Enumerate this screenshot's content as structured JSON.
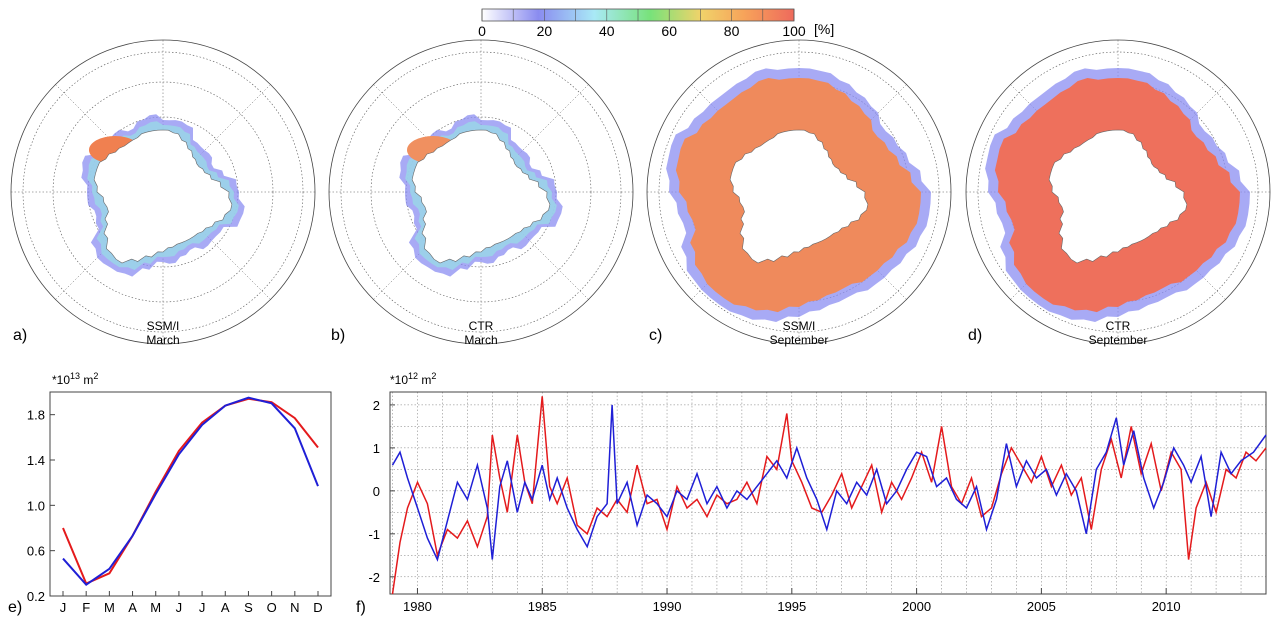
{
  "colorbar": {
    "ticks": [
      "0",
      "20",
      "40",
      "60",
      "80",
      "100"
    ],
    "unit": "[%]",
    "colors": [
      "#ffffff",
      "#8a8cf0",
      "#a9e9f6",
      "#78e27a",
      "#f0d36a",
      "#f7a35a",
      "#ee6a5c"
    ]
  },
  "maps": [
    {
      "letter": "a)",
      "source": "SSM/I",
      "month": "March",
      "colors": {
        "land": "#ffffff",
        "pack": "#f08050",
        "edge": "#8b8ef2"
      }
    },
    {
      "letter": "b)",
      "source": "CTR",
      "month": "March",
      "colors": {
        "land": "#ffffff",
        "pack": "#f09060",
        "edge": "#8b8ef2"
      }
    },
    {
      "letter": "c)",
      "source": "SSM/I",
      "month": "September",
      "colors": {
        "land": "#ffffff",
        "pack": "#ef8a5c",
        "edge": "#8b8ef2"
      }
    },
    {
      "letter": "d)",
      "source": "CTR",
      "month": "September",
      "colors": {
        "land": "#ffffff",
        "pack": "#ee705c",
        "edge": "#8b8ef2"
      }
    }
  ],
  "chart_data": [
    {
      "type": "line",
      "panel": "e)",
      "unit_label": "*10",
      "unit_exp": "13",
      "unit_suffix": " m",
      "unit_sq": "2",
      "categories": [
        "J",
        "F",
        "M",
        "A",
        "M",
        "J",
        "J",
        "A",
        "S",
        "O",
        "N",
        "D"
      ],
      "yticks": [
        "0.2",
        "0.6",
        "1.0",
        "1.4",
        "1.8"
      ],
      "ylim": [
        0.2,
        2.0
      ],
      "series": [
        {
          "color": "#e41a1c",
          "values": [
            0.8,
            0.31,
            0.4,
            0.73,
            1.12,
            1.48,
            1.73,
            1.88,
            1.94,
            1.91,
            1.77,
            1.51
          ]
        },
        {
          "color": "#1f1fd6",
          "values": [
            0.53,
            0.3,
            0.44,
            0.73,
            1.1,
            1.45,
            1.71,
            1.88,
            1.95,
            1.9,
            1.68,
            1.17
          ]
        }
      ]
    },
    {
      "type": "line",
      "panel": "f)",
      "unit_label": "*10",
      "unit_exp": "12",
      "unit_suffix": " m",
      "unit_sq": "2",
      "xticks": [
        "1980",
        "1985",
        "1990",
        "1995",
        "2000",
        "2005",
        "2010"
      ],
      "yticks": [
        "-2",
        "-1",
        "0",
        "1",
        "2"
      ],
      "xlim": [
        1978.9,
        2014.0
      ],
      "ylim": [
        -2.4,
        2.3
      ],
      "grid": true,
      "series": [
        {
          "color": "#e41a1c",
          "points": [
            [
              1979.0,
              -2.4
            ],
            [
              1979.3,
              -1.2
            ],
            [
              1979.6,
              -0.4
            ],
            [
              1980.0,
              0.2
            ],
            [
              1980.4,
              -0.3
            ],
            [
              1980.8,
              -1.5
            ],
            [
              1981.2,
              -0.9
            ],
            [
              1981.6,
              -1.1
            ],
            [
              1982.0,
              -0.7
            ],
            [
              1982.4,
              -1.3
            ],
            [
              1982.8,
              -0.6
            ],
            [
              1983.0,
              1.3
            ],
            [
              1983.3,
              0.3
            ],
            [
              1983.6,
              -0.5
            ],
            [
              1984.0,
              1.3
            ],
            [
              1984.3,
              0.2
            ],
            [
              1984.6,
              -0.3
            ],
            [
              1985.0,
              2.2
            ],
            [
              1985.3,
              0.1
            ],
            [
              1985.6,
              -0.3
            ],
            [
              1986.0,
              0.3
            ],
            [
              1986.4,
              -0.8
            ],
            [
              1986.8,
              -1.0
            ],
            [
              1987.2,
              -0.4
            ],
            [
              1987.6,
              -0.6
            ],
            [
              1988.0,
              -0.2
            ],
            [
              1988.4,
              -0.5
            ],
            [
              1988.8,
              0.6
            ],
            [
              1989.2,
              -0.3
            ],
            [
              1989.6,
              -0.2
            ],
            [
              1990.0,
              -0.9
            ],
            [
              1990.4,
              0.1
            ],
            [
              1990.8,
              -0.4
            ],
            [
              1991.2,
              -0.2
            ],
            [
              1991.6,
              -0.6
            ],
            [
              1992.0,
              -0.1
            ],
            [
              1992.4,
              -0.3
            ],
            [
              1992.8,
              -0.2
            ],
            [
              1993.2,
              0.2
            ],
            [
              1993.6,
              -0.3
            ],
            [
              1994.0,
              0.8
            ],
            [
              1994.4,
              0.5
            ],
            [
              1994.8,
              1.8
            ],
            [
              1995.0,
              0.7
            ],
            [
              1995.4,
              0.2
            ],
            [
              1995.8,
              -0.4
            ],
            [
              1996.2,
              -0.5
            ],
            [
              1996.6,
              -0.1
            ],
            [
              1997.0,
              0.4
            ],
            [
              1997.4,
              -0.4
            ],
            [
              1997.8,
              0.1
            ],
            [
              1998.2,
              0.6
            ],
            [
              1998.6,
              -0.5
            ],
            [
              1999.0,
              0.2
            ],
            [
              1999.4,
              -0.2
            ],
            [
              1999.8,
              0.3
            ],
            [
              2000.2,
              0.9
            ],
            [
              2000.6,
              0.2
            ],
            [
              2001.0,
              1.5
            ],
            [
              2001.4,
              0.1
            ],
            [
              2001.8,
              -0.3
            ],
            [
              2002.2,
              0.3
            ],
            [
              2002.6,
              -0.6
            ],
            [
              2003.0,
              -0.4
            ],
            [
              2003.4,
              0.4
            ],
            [
              2003.8,
              1.0
            ],
            [
              2004.2,
              0.6
            ],
            [
              2004.6,
              0.2
            ],
            [
              2005.0,
              0.8
            ],
            [
              2005.4,
              0.1
            ],
            [
              2005.8,
              0.6
            ],
            [
              2006.2,
              -0.1
            ],
            [
              2006.6,
              0.3
            ],
            [
              2007.0,
              -0.9
            ],
            [
              2007.4,
              0.5
            ],
            [
              2007.8,
              1.2
            ],
            [
              2008.2,
              0.3
            ],
            [
              2008.6,
              1.5
            ],
            [
              2009.0,
              0.4
            ],
            [
              2009.4,
              1.1
            ],
            [
              2009.8,
              0.0
            ],
            [
              2010.2,
              0.9
            ],
            [
              2010.6,
              0.5
            ],
            [
              2010.9,
              -1.6
            ],
            [
              2011.2,
              -0.4
            ],
            [
              2011.6,
              0.2
            ],
            [
              2012.0,
              -0.5
            ],
            [
              2012.4,
              0.5
            ],
            [
              2012.8,
              0.3
            ],
            [
              2013.2,
              0.9
            ],
            [
              2013.6,
              0.7
            ],
            [
              2014.0,
              1.0
            ]
          ]
        },
        {
          "color": "#1f1fd6",
          "points": [
            [
              1979.0,
              0.6
            ],
            [
              1979.3,
              0.9
            ],
            [
              1979.6,
              0.3
            ],
            [
              1980.0,
              -0.4
            ],
            [
              1980.4,
              -1.1
            ],
            [
              1980.8,
              -1.6
            ],
            [
              1981.2,
              -0.7
            ],
            [
              1981.6,
              0.2
            ],
            [
              1982.0,
              -0.2
            ],
            [
              1982.4,
              0.6
            ],
            [
              1982.8,
              -0.4
            ],
            [
              1983.0,
              -1.6
            ],
            [
              1983.3,
              0.1
            ],
            [
              1983.6,
              0.7
            ],
            [
              1984.0,
              -0.5
            ],
            [
              1984.3,
              0.2
            ],
            [
              1984.6,
              -0.2
            ],
            [
              1985.0,
              0.6
            ],
            [
              1985.3,
              -0.2
            ],
            [
              1985.6,
              0.3
            ],
            [
              1986.0,
              -0.4
            ],
            [
              1986.4,
              -0.9
            ],
            [
              1986.8,
              -1.3
            ],
            [
              1987.2,
              -0.6
            ],
            [
              1987.6,
              -0.3
            ],
            [
              1987.8,
              2.0
            ],
            [
              1988.0,
              -0.3
            ],
            [
              1988.4,
              0.2
            ],
            [
              1988.8,
              -0.8
            ],
            [
              1989.2,
              -0.1
            ],
            [
              1989.6,
              -0.3
            ],
            [
              1990.0,
              -0.6
            ],
            [
              1990.4,
              0.0
            ],
            [
              1990.8,
              -0.2
            ],
            [
              1991.2,
              0.4
            ],
            [
              1991.6,
              -0.3
            ],
            [
              1992.0,
              0.1
            ],
            [
              1992.4,
              -0.4
            ],
            [
              1992.8,
              0.0
            ],
            [
              1993.2,
              -0.2
            ],
            [
              1993.6,
              0.1
            ],
            [
              1994.0,
              0.4
            ],
            [
              1994.4,
              0.7
            ],
            [
              1994.8,
              0.3
            ],
            [
              1995.2,
              1.0
            ],
            [
              1995.6,
              0.3
            ],
            [
              1996.0,
              -0.2
            ],
            [
              1996.4,
              -0.9
            ],
            [
              1996.8,
              0.0
            ],
            [
              1997.2,
              -0.3
            ],
            [
              1997.6,
              0.2
            ],
            [
              1998.0,
              -0.1
            ],
            [
              1998.4,
              0.5
            ],
            [
              1998.8,
              -0.3
            ],
            [
              1999.2,
              0.0
            ],
            [
              1999.6,
              0.5
            ],
            [
              2000.0,
              0.9
            ],
            [
              2000.4,
              0.8
            ],
            [
              2000.8,
              0.1
            ],
            [
              2001.2,
              0.3
            ],
            [
              2001.6,
              -0.2
            ],
            [
              2002.0,
              -0.4
            ],
            [
              2002.4,
              0.1
            ],
            [
              2002.8,
              -0.9
            ],
            [
              2003.2,
              -0.2
            ],
            [
              2003.6,
              1.1
            ],
            [
              2004.0,
              0.1
            ],
            [
              2004.4,
              0.7
            ],
            [
              2004.8,
              0.3
            ],
            [
              2005.2,
              0.5
            ],
            [
              2005.6,
              -0.1
            ],
            [
              2006.0,
              0.4
            ],
            [
              2006.4,
              0.0
            ],
            [
              2006.8,
              -1.0
            ],
            [
              2007.2,
              0.5
            ],
            [
              2007.6,
              0.9
            ],
            [
              2008.0,
              1.7
            ],
            [
              2008.3,
              0.6
            ],
            [
              2008.7,
              1.4
            ],
            [
              2009.1,
              0.3
            ],
            [
              2009.5,
              -0.4
            ],
            [
              2009.9,
              0.2
            ],
            [
              2010.3,
              1.0
            ],
            [
              2010.7,
              0.6
            ],
            [
              2011.0,
              0.2
            ],
            [
              2011.4,
              0.8
            ],
            [
              2011.8,
              -0.6
            ],
            [
              2012.2,
              0.9
            ],
            [
              2012.6,
              0.4
            ],
            [
              2013.0,
              0.7
            ],
            [
              2013.5,
              0.9
            ],
            [
              2014.0,
              1.3
            ]
          ]
        }
      ]
    }
  ]
}
